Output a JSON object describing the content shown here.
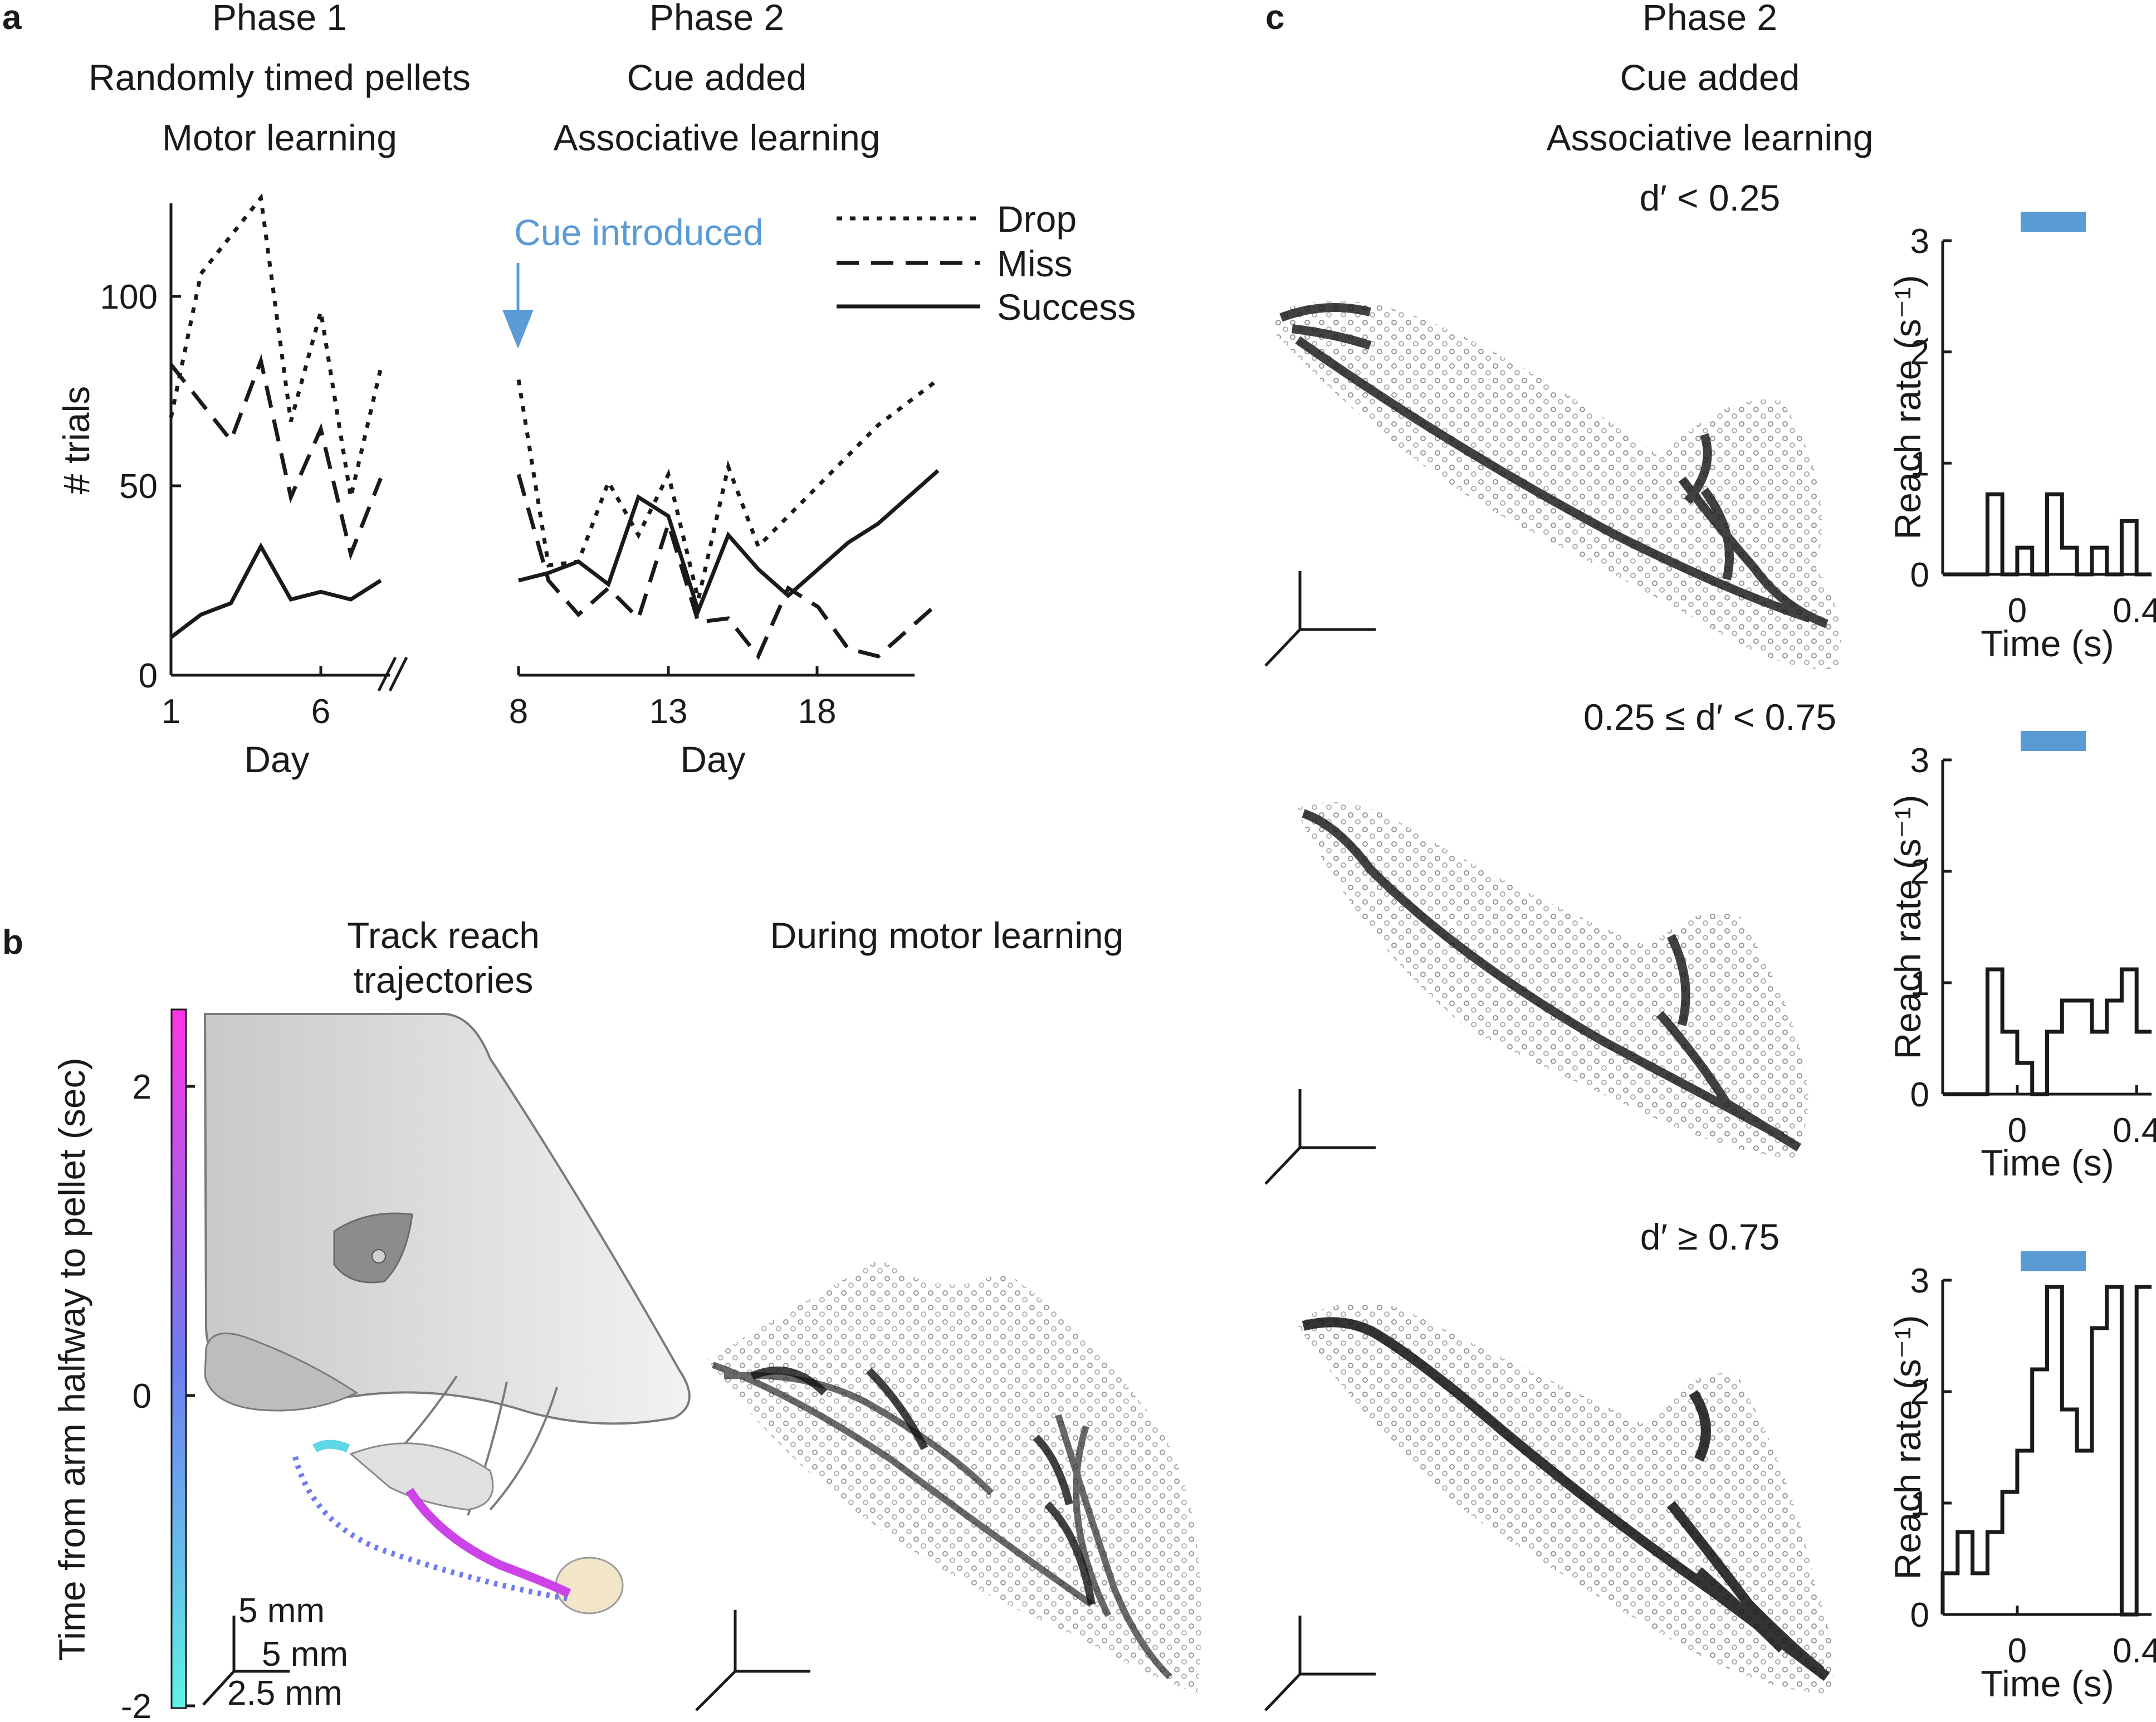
{
  "panel_labels": {
    "a": "a",
    "b": "b",
    "c": "c"
  },
  "colors": {
    "accent": "#5b9bd5",
    "ink": "#1a1a1a",
    "pellet": "#f3e6c8",
    "mouse": "#cfcfcf"
  },
  "panel_a": {
    "phase1": {
      "h1": "Phase 1",
      "h2": "Randomly timed pellets",
      "h3": "Motor learning"
    },
    "phase2": {
      "h1": "Phase 2",
      "h2": "Cue added",
      "h3": "Associative learning"
    },
    "cue_annotation": "Cue introduced",
    "legend": [
      "Drop",
      "Miss",
      "Success"
    ],
    "ylabel": "# trials",
    "xlabel": "Day",
    "yticks": [
      "0",
      "50",
      "100"
    ],
    "xticks_phase1": [
      "1",
      "6"
    ],
    "xticks_phase2": [
      "8",
      "13",
      "18"
    ]
  },
  "panel_b": {
    "title1": "Track reach",
    "title2": "trajectories",
    "title_right": "During motor learning",
    "colorbar_label": "Time from arm halfway to pellet (sec)",
    "colorbar_ticks": [
      "2",
      "0",
      "-2"
    ],
    "scale": [
      "5 mm",
      "5 mm",
      "2.5 mm"
    ]
  },
  "panel_c": {
    "phase": {
      "h1": "Phase 2",
      "h2": "Cue added",
      "h3": "Associative learning"
    },
    "rows": [
      {
        "condition": "d′ < 0.25"
      },
      {
        "condition": "0.25 ≤ d′ < 0.75"
      },
      {
        "condition": "d′ ≥ 0.75"
      }
    ],
    "hist_ylabel": "Reach rate (s⁻¹)",
    "hist_xlabel": "Time (s)",
    "hist_yticks": [
      "0",
      "1",
      "2",
      "3"
    ],
    "hist_xticks": [
      "0",
      "0.4"
    ]
  },
  "chart_data": [
    {
      "id": "phase1",
      "type": "line",
      "title": "Phase 1 — Randomly timed pellets — Motor learning",
      "xlabel": "Day",
      "ylabel": "# trials",
      "xlim": [
        1,
        8
      ],
      "ylim": [
        0,
        125
      ],
      "x": [
        1,
        2,
        3,
        4,
        5,
        6,
        7,
        8
      ],
      "series": [
        {
          "name": "Drop",
          "values": [
            68,
            106,
            116,
            126,
            67,
            96,
            47,
            81
          ]
        },
        {
          "name": "Miss",
          "values": [
            82,
            72,
            62,
            83,
            47,
            65,
            32,
            52
          ]
        },
        {
          "name": "Success",
          "values": [
            10,
            16,
            19,
            34,
            20,
            22,
            20,
            25
          ]
        }
      ]
    },
    {
      "id": "phase2",
      "type": "line",
      "title": "Phase 2 — Cue added — Associative learning",
      "xlabel": "Day",
      "ylabel": "# trials",
      "xlim": [
        8,
        22
      ],
      "ylim": [
        0,
        125
      ],
      "x": [
        8,
        9,
        10,
        11,
        12,
        13,
        14,
        15,
        16,
        17,
        18,
        19,
        20,
        21,
        22
      ],
      "series": [
        {
          "name": "Drop",
          "values": [
            78,
            29,
            30,
            51,
            37,
            53,
            20,
            55,
            34,
            42,
            50,
            58,
            66,
            72,
            78
          ]
        },
        {
          "name": "Miss",
          "values": [
            53,
            25,
            16,
            23,
            15,
            40,
            14,
            15,
            5,
            23,
            18,
            7,
            5,
            12,
            19
          ]
        },
        {
          "name": "Success",
          "values": [
            25,
            27,
            30,
            24,
            47,
            42,
            17,
            37,
            28,
            21,
            28,
            35,
            40,
            47,
            54
          ]
        }
      ]
    },
    {
      "id": "hist1",
      "type": "bar",
      "title": "d′ < 0.25",
      "xlabel": "Time (s)",
      "ylabel": "Reach rate (s⁻¹)",
      "xlim": [
        -0.25,
        0.45
      ],
      "ylim": [
        0,
        3
      ],
      "bin_edges": [
        -0.25,
        -0.2,
        -0.15,
        -0.1,
        -0.05,
        0,
        0.05,
        0.1,
        0.15,
        0.2,
        0.25,
        0.3,
        0.35,
        0.4,
        0.45
      ],
      "values": [
        0,
        0,
        0,
        0.72,
        0,
        0.24,
        0,
        0.72,
        0.24,
        0,
        0.24,
        0,
        0.48,
        0
      ]
    },
    {
      "id": "hist2",
      "type": "bar",
      "title": "0.25 ≤ d′ < 0.75",
      "xlabel": "Time (s)",
      "ylabel": "Reach rate (s⁻¹)",
      "xlim": [
        -0.25,
        0.45
      ],
      "ylim": [
        0,
        3
      ],
      "bin_edges": [
        -0.25,
        -0.2,
        -0.15,
        -0.1,
        -0.05,
        0,
        0.05,
        0.1,
        0.15,
        0.2,
        0.25,
        0.3,
        0.35,
        0.4,
        0.45
      ],
      "values": [
        0,
        0,
        0,
        1.12,
        0.56,
        0.28,
        0,
        0.56,
        0.84,
        0.84,
        0.56,
        0.84,
        1.12,
        0.56
      ]
    },
    {
      "id": "hist3",
      "type": "bar",
      "title": "d′ ≥ 0.75",
      "xlabel": "Time (s)",
      "ylabel": "Reach rate (s⁻¹)",
      "xlim": [
        -0.25,
        0.45
      ],
      "ylim": [
        0,
        3
      ],
      "bin_edges": [
        -0.25,
        -0.2,
        -0.15,
        -0.1,
        -0.05,
        0,
        0.05,
        0.1,
        0.15,
        0.2,
        0.25,
        0.3,
        0.35,
        0.4,
        0.45
      ],
      "values": [
        0.37,
        0.74,
        0.37,
        0.74,
        1.1,
        1.47,
        2.2,
        2.94,
        1.84,
        1.47,
        2.57,
        2.94,
        0,
        2.94
      ]
    }
  ]
}
